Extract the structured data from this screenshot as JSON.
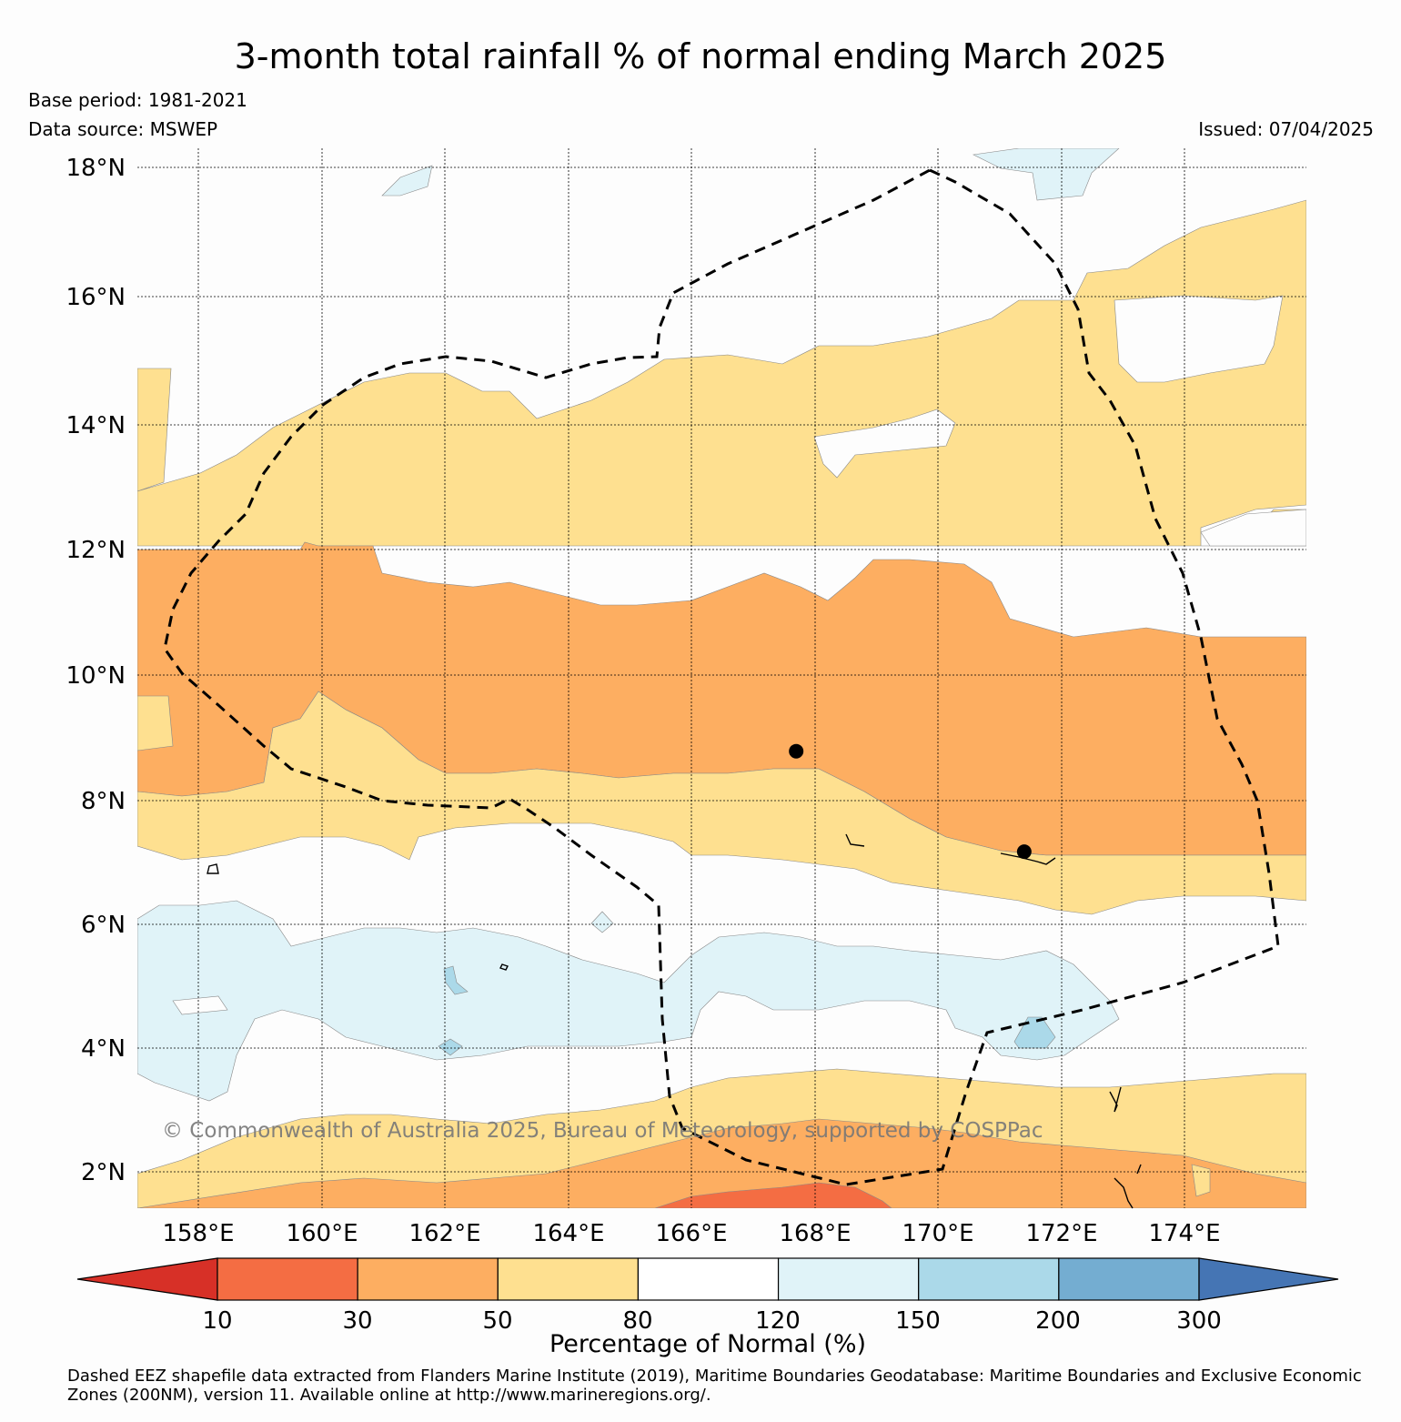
{
  "title": "3-month total rainfall % of normal ending March 2025",
  "base_period": "Base period: 1981-2021",
  "data_source": "Data source: MSWEP",
  "issued": "Issued: 07/04/2025",
  "map": {
    "lat_labels": [
      "18°N",
      "16°N",
      "14°N",
      "12°N",
      "10°N",
      "8°N",
      "6°N",
      "4°N",
      "2°N"
    ],
    "lat_values": [
      18,
      16,
      14,
      12,
      10,
      8,
      6,
      4,
      2
    ],
    "lon_labels": [
      "158°E",
      "160°E",
      "162°E",
      "164°E",
      "166°E",
      "168°E",
      "170°E",
      "172°E",
      "174°E"
    ],
    "lon_values": [
      158,
      160,
      162,
      164,
      166,
      168,
      170,
      172,
      174
    ],
    "copyright": "© Commonwealth of Australia 2025, Bureau of Meteorology, supported by COSPPac",
    "stations": [
      {
        "lon": 167.7,
        "lat": 8.7
      },
      {
        "lon": 171.4,
        "lat": 7.1
      }
    ]
  },
  "colorbar": {
    "ticks": [
      "10",
      "30",
      "50",
      "80",
      "120",
      "150",
      "200",
      "300"
    ],
    "colors": [
      "#d73027",
      "#f46d43",
      "#fdae61",
      "#fee090",
      "#ffffff",
      "#e0f3f8",
      "#abd9e9",
      "#74add1",
      "#4575b4"
    ],
    "label": "Percentage of Normal (%)"
  },
  "footer": "Dashed EEZ shapefile data extracted from Flanders Marine Institute (2019), Maritime Boundaries Geodatabase: Maritime Boundaries and Exclusive Economic Zones (200NM), version 11. Available online at http://www.marineregions.org/."
}
